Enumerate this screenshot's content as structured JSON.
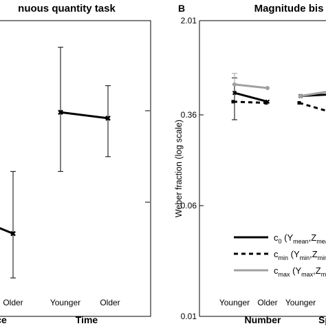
{
  "chart_data": [
    {
      "type": "line",
      "title": "Continuous quantity task",
      "title_visible": "nuous quantity task",
      "xlabel": "",
      "ylabel": "",
      "groups": [
        {
          "name": "ce",
          "levels": [
            "Older"
          ],
          "values": [
            0.28
          ],
          "err_low": [
            0.13
          ],
          "err_high": [
            0.49
          ]
        },
        {
          "name": "Time",
          "levels": [
            "Younger",
            "Older"
          ],
          "values": [
            0.69,
            0.67
          ],
          "err_low": [
            0.49,
            0.54
          ],
          "err_high": [
            0.91,
            0.78
          ]
        }
      ],
      "partial_segment_start": 0.3,
      "ylim": [
        0,
        1.0
      ],
      "grid": false
    },
    {
      "type": "line",
      "panel_letter": "B",
      "title": "Magnitude bis",
      "ylabel": "Weber fraction (log scale)",
      "y_scale": "log",
      "y_ticks": [
        "0.01",
        "0.06",
        "0.36",
        "2.01"
      ],
      "ylim": [
        0.01,
        2.01
      ],
      "grid": false,
      "groups": [
        {
          "name": "Number",
          "levels": [
            "Younger",
            "Older"
          ]
        },
        {
          "name": "Spa",
          "levels": [
            "Younger"
          ]
        }
      ],
      "series": [
        {
          "name": "c0 (Ymean,Zmea",
          "style": "solid",
          "color": "#000000",
          "values": [
            0.55,
            0.47,
            0.52
          ],
          "err_low": [
            0.34,
            null,
            null
          ],
          "err_high": [
            0.72,
            null,
            null
          ]
        },
        {
          "name": "cmin (Ymin,Zmin",
          "style": "dashed",
          "color": "#000000",
          "values": [
            0.47,
            0.46,
            0.46
          ],
          "err_low": [
            null,
            null,
            null
          ],
          "err_high": [
            null,
            null,
            null
          ],
          "trail_end": 0.4
        },
        {
          "name": "cmax (Ymax,Zm",
          "style": "solid",
          "color": "#a0a0a0",
          "values": [
            0.64,
            0.6,
            0.52
          ],
          "err_low": [
            null,
            null,
            null
          ],
          "err_high": [
            0.78,
            null,
            null
          ],
          "trail_end": 0.56
        }
      ],
      "legend_position": "bottom-right"
    }
  ],
  "panel_a": {
    "title": "nuous quantity task",
    "x_tick_labels": [
      "Older",
      "Younger",
      "Older"
    ],
    "group_labels": [
      "ce",
      "Time"
    ]
  },
  "panel_b": {
    "letter": "B",
    "title": "Magnitude bis",
    "ylabel": "Weber fraction (log scale)",
    "y_tick_labels": [
      "2.01",
      "0.36",
      "0.06",
      "0.01"
    ],
    "x_tick_labels": [
      "Younger",
      "Older",
      "Younger"
    ],
    "group_labels": [
      "Number",
      "Sp"
    ],
    "legend": [
      {
        "main": "c",
        "sub": "0",
        "rest": " (Y",
        "sub2": "mean",
        "rest2": ",Z",
        "sub3": "mea"
      },
      {
        "main": "c",
        "sub": "min",
        "rest": " (Y",
        "sub2": "min",
        "rest2": ",Z",
        "sub3": "min"
      },
      {
        "main": "c",
        "sub": "max",
        "rest": " (Y",
        "sub2": "max",
        "rest2": ",Z",
        "sub3": "m"
      }
    ]
  }
}
